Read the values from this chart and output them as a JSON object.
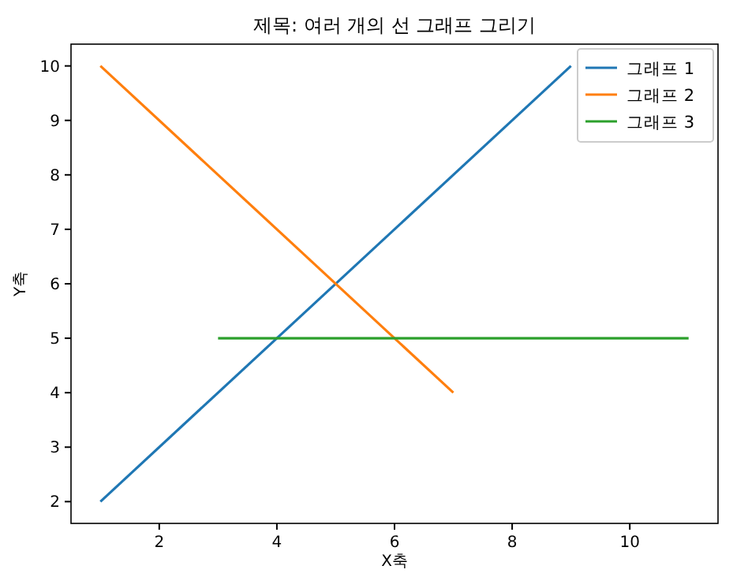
{
  "chart_data": {
    "type": "line",
    "title": "제목: 여러 개의 선 그래프 그리기",
    "xlabel": "X축",
    "ylabel": "Y축",
    "xlim": [
      0.5,
      11.5
    ],
    "ylim": [
      1.6,
      10.4
    ],
    "xticks": [
      2,
      4,
      6,
      8,
      10
    ],
    "yticks": [
      2,
      3,
      4,
      5,
      6,
      7,
      8,
      9,
      10
    ],
    "legend": "top right",
    "series": [
      {
        "name": "그래프 1",
        "color": "#1f77b4",
        "x": [
          1,
          9
        ],
        "values": [
          2,
          10
        ]
      },
      {
        "name": "그래프 2",
        "color": "#ff7f0e",
        "x": [
          1,
          7
        ],
        "values": [
          10,
          4
        ]
      },
      {
        "name": "그래프 3",
        "color": "#2ca02c",
        "x": [
          3,
          11
        ],
        "values": [
          5,
          5
        ]
      }
    ]
  }
}
